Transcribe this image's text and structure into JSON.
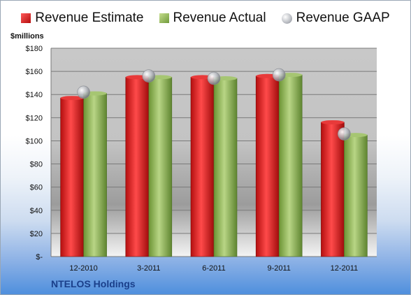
{
  "company": "NTELOS Holdings",
  "colors": {
    "estimate": "#d01e1e",
    "actual": "#8bb053",
    "gaap": "#b8bbc1"
  },
  "chart_data": {
    "type": "bar",
    "title": "",
    "xlabel": "",
    "ylabel": "$millions",
    "ylim": [
      0,
      180
    ],
    "yticks": [
      0,
      20,
      40,
      60,
      80,
      100,
      120,
      140,
      160,
      180
    ],
    "ytick_labels": [
      "$-",
      "$20",
      "$40",
      "$60",
      "$80",
      "$100",
      "$120",
      "$140",
      "$160",
      "$180"
    ],
    "categories": [
      "12-2010",
      "3-2011",
      "6-2011",
      "9-2011",
      "12-2011"
    ],
    "legend_position": "top",
    "grid": true,
    "series": [
      {
        "name": "Revenue Estimate",
        "type": "bar",
        "values": [
          137,
          155,
          155,
          156,
          116
        ]
      },
      {
        "name": "Revenue Actual",
        "type": "bar",
        "values": [
          141,
          155,
          154,
          157,
          105
        ]
      },
      {
        "name": "Revenue GAAP",
        "type": "scatter",
        "values": [
          142,
          156,
          154,
          157,
          106
        ]
      }
    ]
  }
}
